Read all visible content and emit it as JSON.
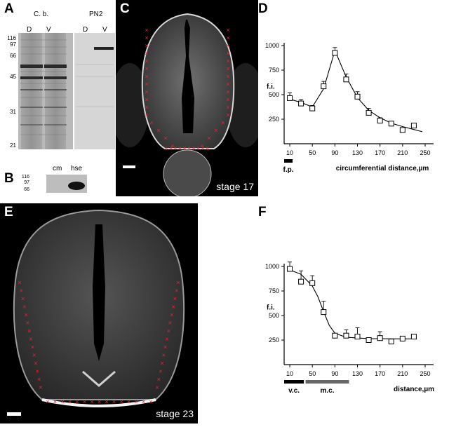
{
  "panel_labels": {
    "A": "A",
    "B": "B",
    "C": "C",
    "D": "D",
    "E": "E",
    "F": "F"
  },
  "panelA": {
    "group1": "C. b.",
    "group2": "PN2",
    "lanes": [
      "D",
      "V",
      "D",
      "V"
    ],
    "mw": [
      "116",
      "97",
      "66",
      "45",
      "31",
      "21"
    ]
  },
  "panelB": {
    "lanes": [
      "cm",
      "hse"
    ],
    "mw": [
      "116",
      "97",
      "66"
    ]
  },
  "panelC": {
    "stage": "stage 17"
  },
  "panelE": {
    "stage": "stage 23"
  },
  "chart_data": [
    {
      "type": "scatter",
      "panel": "D",
      "xlabel": "circumferential distance,µm",
      "ylabel": "f.i.",
      "xticks": [
        10,
        50,
        90,
        130,
        170,
        210,
        250
      ],
      "yticks": [
        250,
        500,
        750,
        1000
      ],
      "xlim": [
        0,
        255
      ],
      "ylim": [
        0,
        1000
      ],
      "annotation": "f.p.",
      "points": [
        {
          "x": 10,
          "y": 465,
          "err": 55
        },
        {
          "x": 30,
          "y": 410,
          "err": 40
        },
        {
          "x": 50,
          "y": 360,
          "err": 30
        },
        {
          "x": 70,
          "y": 585,
          "err": 50
        },
        {
          "x": 90,
          "y": 925,
          "err": 55
        },
        {
          "x": 110,
          "y": 655,
          "err": 55
        },
        {
          "x": 130,
          "y": 480,
          "err": 50
        },
        {
          "x": 150,
          "y": 315,
          "err": 45
        },
        {
          "x": 170,
          "y": 235,
          "err": 30
        },
        {
          "x": 190,
          "y": 205,
          "err": 15
        },
        {
          "x": 210,
          "y": 140,
          "err": 0
        },
        {
          "x": 230,
          "y": 185,
          "err": 0
        }
      ],
      "fit": [
        [
          10,
          455
        ],
        [
          30,
          420
        ],
        [
          50,
          375
        ],
        [
          70,
          560
        ],
        [
          90,
          950
        ],
        [
          110,
          680
        ],
        [
          130,
          470
        ],
        [
          150,
          340
        ],
        [
          170,
          265
        ],
        [
          190,
          210
        ],
        [
          210,
          175
        ],
        [
          230,
          145
        ],
        [
          245,
          122
        ]
      ]
    },
    {
      "type": "scatter",
      "panel": "F",
      "xlabel": "distance,µm",
      "ylabel": "f.i.",
      "xticks": [
        10,
        50,
        90,
        130,
        170,
        210,
        250
      ],
      "yticks": [
        250,
        500,
        750,
        1000
      ],
      "xlim": [
        0,
        255
      ],
      "ylim": [
        0,
        1000
      ],
      "annotations": [
        "v.c.",
        "m.c."
      ],
      "points": [
        {
          "x": 10,
          "y": 975,
          "err": 70
        },
        {
          "x": 30,
          "y": 845,
          "err": 110
        },
        {
          "x": 50,
          "y": 830,
          "err": 75
        },
        {
          "x": 70,
          "y": 535,
          "err": 110
        },
        {
          "x": 90,
          "y": 295,
          "err": 0
        },
        {
          "x": 110,
          "y": 295,
          "err": 60
        },
        {
          "x": 130,
          "y": 285,
          "err": 90
        },
        {
          "x": 150,
          "y": 250,
          "err": 0
        },
        {
          "x": 170,
          "y": 270,
          "err": 65
        },
        {
          "x": 190,
          "y": 235,
          "err": 0
        },
        {
          "x": 210,
          "y": 265,
          "err": 0
        },
        {
          "x": 230,
          "y": 285,
          "err": 0
        }
      ],
      "fit": [
        [
          10,
          965
        ],
        [
          30,
          920
        ],
        [
          50,
          800
        ],
        [
          60,
          690
        ],
        [
          70,
          540
        ],
        [
          80,
          400
        ],
        [
          90,
          320
        ],
        [
          110,
          278
        ],
        [
          150,
          265
        ],
        [
          200,
          262
        ],
        [
          235,
          262
        ]
      ]
    }
  ]
}
